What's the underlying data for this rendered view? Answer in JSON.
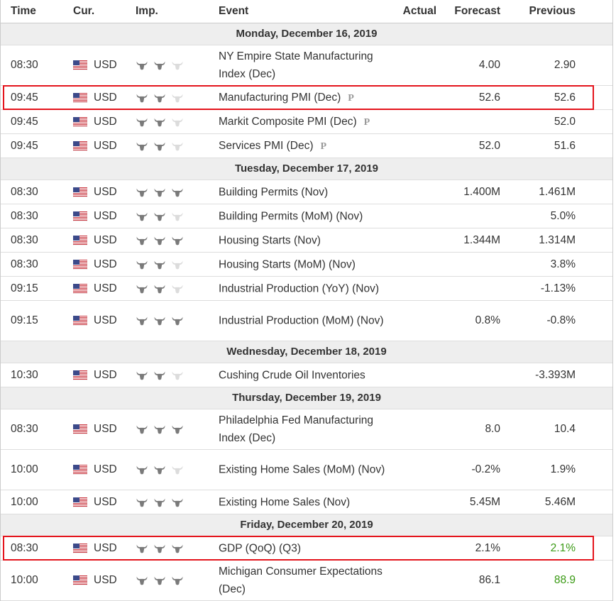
{
  "header": [
    "Time",
    "Cur.",
    "Imp.",
    "Event",
    "Actual",
    "Forecast",
    "Previous"
  ],
  "days": [
    {
      "date": "Monday, December 16, 2019",
      "rows": [
        {
          "time": "08:30",
          "currency": "USD",
          "importance": 2,
          "event": "NY Empire State Manufacturing Index (Dec)",
          "lines": 2,
          "forecast": "4.00",
          "previous": "2.90"
        },
        {
          "time": "09:45",
          "currency": "USD",
          "importance": 2,
          "event": "Manufacturing PMI (Dec)",
          "badge": "P",
          "forecast": "52.6",
          "previous": "52.6",
          "highlight": true
        },
        {
          "time": "09:45",
          "currency": "USD",
          "importance": 2,
          "event": "Markit Composite PMI (Dec)",
          "badge": "P",
          "previous": "52.0"
        },
        {
          "time": "09:45",
          "currency": "USD",
          "importance": 2,
          "event": "Services PMI (Dec)",
          "badge": "P",
          "forecast": "52.0",
          "previous": "51.6"
        }
      ]
    },
    {
      "date": "Tuesday, December 17, 2019",
      "rows": [
        {
          "time": "08:30",
          "currency": "USD",
          "importance": 3,
          "event": "Building Permits (Nov)",
          "forecast": "1.400M",
          "previous": "1.461M"
        },
        {
          "time": "08:30",
          "currency": "USD",
          "importance": 2,
          "event": "Building Permits (MoM) (Nov)",
          "previous": "5.0%"
        },
        {
          "time": "08:30",
          "currency": "USD",
          "importance": 3,
          "event": "Housing Starts (Nov)",
          "forecast": "1.344M",
          "previous": "1.314M"
        },
        {
          "time": "08:30",
          "currency": "USD",
          "importance": 2,
          "event": "Housing Starts (MoM) (Nov)",
          "previous": "3.8%"
        },
        {
          "time": "09:15",
          "currency": "USD",
          "importance": 2,
          "event": "Industrial Production (YoY) (Nov)",
          "previous": "-1.13%"
        },
        {
          "time": "09:15",
          "currency": "USD",
          "importance": 3,
          "event": "Industrial Production (MoM) (Nov)",
          "lines": 2,
          "forecast": "0.8%",
          "previous": "-0.8%"
        }
      ]
    },
    {
      "date": "Wednesday, December 18, 2019",
      "rows": [
        {
          "time": "10:30",
          "currency": "USD",
          "importance": 2,
          "event": "Cushing Crude Oil Inventories",
          "previous": "-3.393M"
        }
      ]
    },
    {
      "date": "Thursday, December 19, 2019",
      "rows": [
        {
          "time": "08:30",
          "currency": "USD",
          "importance": 3,
          "event": "Philadelphia Fed Manufacturing Index (Dec)",
          "lines": 2,
          "forecast": "8.0",
          "previous": "10.4"
        },
        {
          "time": "10:00",
          "currency": "USD",
          "importance": 2,
          "event": "Existing Home Sales (MoM) (Nov)",
          "lines": 2,
          "forecast": "-0.2%",
          "previous": "1.9%"
        },
        {
          "time": "10:00",
          "currency": "USD",
          "importance": 3,
          "event": "Existing Home Sales (Nov)",
          "forecast": "5.45M",
          "previous": "5.46M"
        }
      ]
    },
    {
      "date": "Friday, December 20, 2019",
      "rows": [
        {
          "time": "08:30",
          "currency": "USD",
          "importance": 3,
          "event": "GDP (QoQ) (Q3)",
          "forecast": "2.1%",
          "previous": "2.1%",
          "previous_color": "#3a9a14",
          "highlight": true
        },
        {
          "time": "10:00",
          "currency": "USD",
          "importance": 3,
          "event": "Michigan Consumer Expectations (Dec)",
          "lines": 2,
          "forecast": "86.1",
          "previous": "88.9",
          "previous_color": "#3a9a14"
        }
      ]
    }
  ]
}
